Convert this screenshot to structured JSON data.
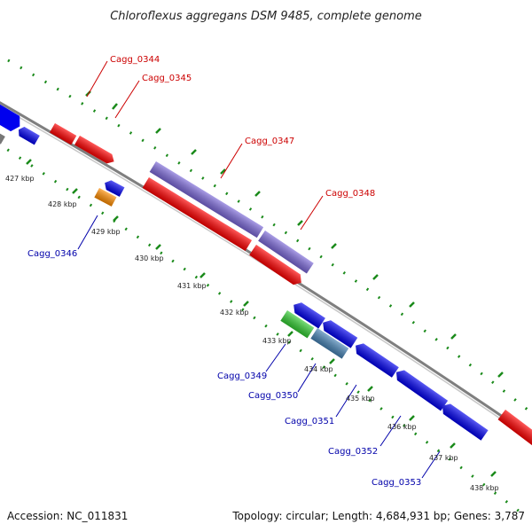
{
  "title": "Chloroflexus aggregans DSM 9485, complete genome",
  "footer": {
    "accession": "Accession: NC_011831",
    "topology": "Topology: circular; Length: 4,684,931 bp; Genes: 3,787"
  },
  "colors": {
    "backbone": "#8a8a8a",
    "tick_green": "#1a8a1a",
    "forward_red": "#ff0000",
    "reverse_blue": "#0000ee",
    "purple": "#7b68d8",
    "orange": "#ff8c00",
    "green": "#33cc33",
    "steelblue": "#4682b4",
    "gray": "#777777",
    "label_red": "#cc0000",
    "label_blue": "#0000aa"
  },
  "scale_labels": [
    "427 kbp",
    "428 kbp",
    "429 kbp",
    "430 kbp",
    "431 kbp",
    "432 kbp",
    "433 kbp",
    "434 kbp",
    "435 kbp",
    "436 kbp",
    "437 kbp",
    "438 kbp"
  ],
  "gene_labels_top": [
    "Cagg_0344",
    "Cagg_0345",
    "Cagg_0347",
    "Cagg_0348"
  ],
  "gene_labels_bottom": [
    "Cagg_0346",
    "Cagg_0349",
    "Cagg_0350",
    "Cagg_0351",
    "Cagg_0352",
    "Cagg_0353"
  ]
}
